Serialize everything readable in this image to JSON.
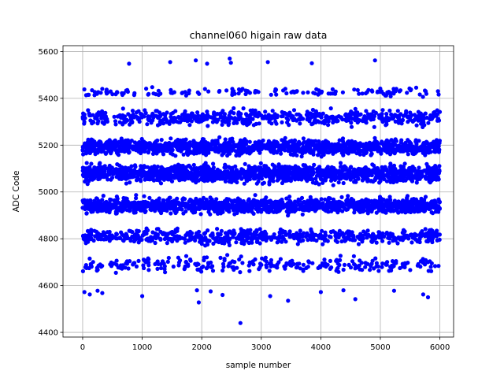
{
  "chart_data": {
    "type": "scatter",
    "title": "channel060 higain raw data",
    "xlabel": "sample number",
    "ylabel": "ADC Code",
    "xlim": [
      -330,
      6230
    ],
    "ylim": [
      4380,
      5625
    ],
    "xticks": [
      0,
      1000,
      2000,
      3000,
      4000,
      5000,
      6000
    ],
    "yticks": [
      4400,
      4600,
      4800,
      5000,
      5200,
      5400,
      5600
    ],
    "grid": true,
    "legend": "none",
    "series_color": "#0000ff",
    "sample_count": 6000,
    "bands": [
      {
        "center": 5428,
        "spread": 12,
        "count": 150
      },
      {
        "center": 5318,
        "spread": 22,
        "count": 600
      },
      {
        "center": 5192,
        "spread": 22,
        "count": 1300
      },
      {
        "center": 5078,
        "spread": 25,
        "count": 1500
      },
      {
        "center": 4942,
        "spread": 22,
        "count": 1400
      },
      {
        "center": 4810,
        "spread": 20,
        "count": 650
      },
      {
        "center": 4690,
        "spread": 22,
        "count": 280
      }
    ],
    "points": [
      {
        "x": 780,
        "y": 5548
      },
      {
        "x": 1470,
        "y": 5555
      },
      {
        "x": 1900,
        "y": 5562
      },
      {
        "x": 2090,
        "y": 5548
      },
      {
        "x": 2470,
        "y": 5570
      },
      {
        "x": 2490,
        "y": 5552
      },
      {
        "x": 3110,
        "y": 5555
      },
      {
        "x": 3850,
        "y": 5550
      },
      {
        "x": 4910,
        "y": 5562
      },
      {
        "x": 5020,
        "y": 5430
      },
      {
        "x": 30,
        "y": 4572
      },
      {
        "x": 120,
        "y": 4562
      },
      {
        "x": 250,
        "y": 4578
      },
      {
        "x": 330,
        "y": 4568
      },
      {
        "x": 1000,
        "y": 4555
      },
      {
        "x": 1920,
        "y": 4580
      },
      {
        "x": 1950,
        "y": 4528
      },
      {
        "x": 2150,
        "y": 4575
      },
      {
        "x": 2350,
        "y": 4560
      },
      {
        "x": 3150,
        "y": 4555
      },
      {
        "x": 3450,
        "y": 4535
      },
      {
        "x": 4000,
        "y": 4572
      },
      {
        "x": 4380,
        "y": 4580
      },
      {
        "x": 4580,
        "y": 4542
      },
      {
        "x": 5230,
        "y": 4578
      },
      {
        "x": 5720,
        "y": 4562
      },
      {
        "x": 5800,
        "y": 4550
      },
      {
        "x": 2650,
        "y": 4440
      }
    ]
  }
}
